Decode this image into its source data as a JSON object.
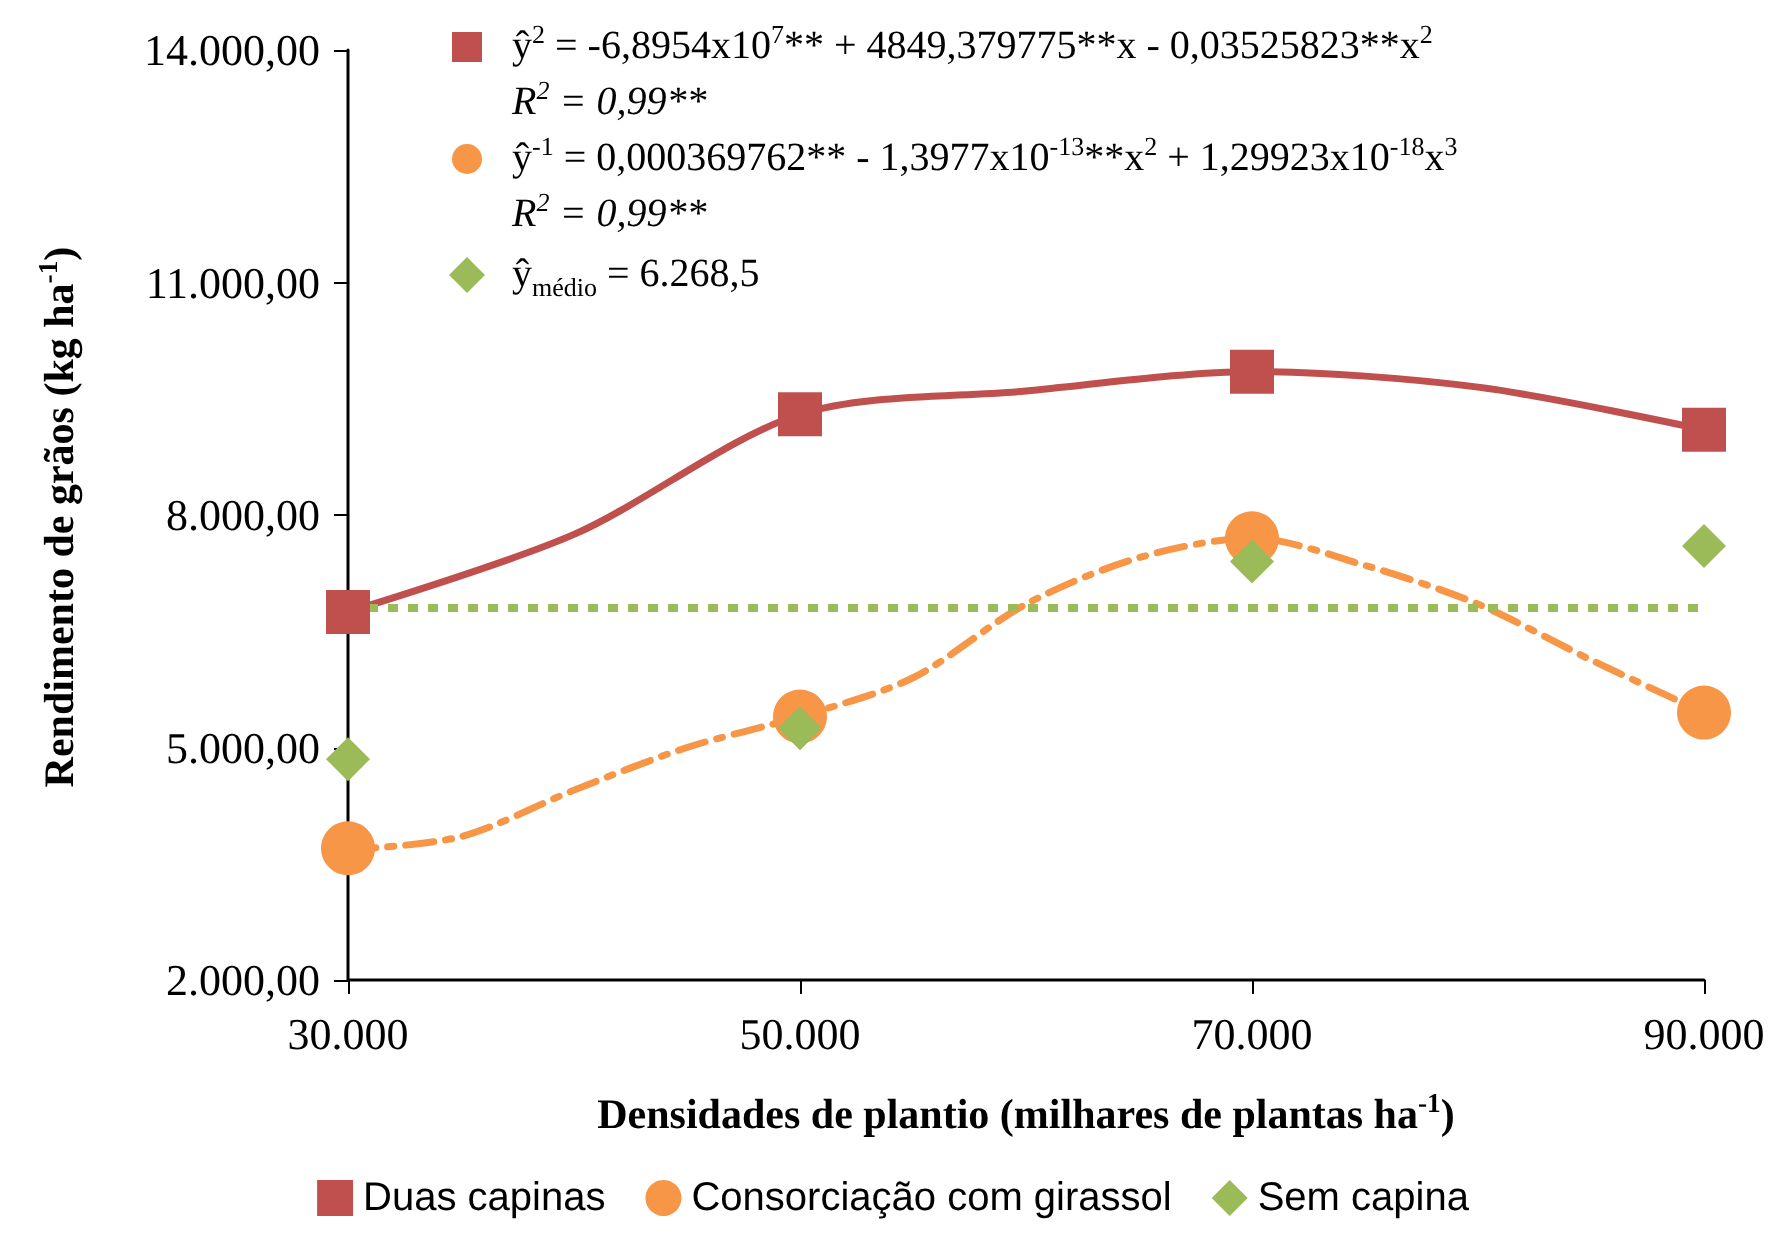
{
  "chart_data": {
    "type": "scatter",
    "xlabel": "Densidades de plantio (milhares de plantas ha$^{-1}$)",
    "ylabel": "Rendimento de grãos (kg ha$^{-1}$)",
    "xlim": [
      30000,
      90000
    ],
    "xticks": [
      {
        "value": 30000,
        "label": "30.000"
      },
      {
        "value": 50000,
        "label": "50.000"
      },
      {
        "value": 70000,
        "label": "70.000"
      },
      {
        "value": 90000,
        "label": "90.000"
      }
    ],
    "ylim": [
      2000,
      14000
    ],
    "yticks": [
      {
        "value": 2000,
        "label": "2.000,00"
      },
      {
        "value": 5000,
        "label": "5.000,00"
      },
      {
        "value": 8000,
        "label": "8.000,00"
      },
      {
        "value": 11000,
        "label": "11.000,00"
      },
      {
        "value": 14000,
        "label": "14.000,00"
      }
    ],
    "grid": false,
    "legend": "bottom",
    "series": [
      {
        "name": "Duas capinas",
        "marker": "square",
        "color": "#c0504d",
        "x": [
          30000,
          50000,
          70000,
          90000
        ],
        "values": [
          6750,
          9300,
          9850,
          9100
        ]
      },
      {
        "name": "Consorciação com girassol",
        "marker": "circle",
        "color": "#f79646",
        "x": [
          30000,
          50000,
          70000,
          90000
        ],
        "values": [
          3700,
          5400,
          7700,
          5450
        ]
      },
      {
        "name": "Sem capina",
        "marker": "diamond",
        "color": "#9bbb59",
        "x": [
          30000,
          50000,
          70000,
          90000
        ],
        "values": [
          4850,
          5250,
          7400,
          7600
        ]
      },
      {
        "type": "line",
        "marker": "none",
        "line_style": "solid",
        "color": "#c0504d",
        "x": [
          30000,
          40000,
          50000,
          60000,
          70000,
          80000,
          90000
        ],
        "values": [
          6750,
          7750,
          9300,
          9600,
          9850,
          9650,
          9100
        ]
      },
      {
        "type": "line",
        "marker": "none",
        "line_style": "dashed",
        "color": "#f79646",
        "x": [
          30000,
          35000,
          40000,
          45000,
          50000,
          55000,
          60000,
          65000,
          70000,
          75000,
          80000,
          85000,
          90000
        ],
        "values": [
          3680,
          3850,
          4450,
          5000,
          5400,
          5900,
          6850,
          7450,
          7700,
          7350,
          6850,
          6130,
          5450
        ]
      }
    ],
    "ref_lines": [
      {
        "axis": "y",
        "value": 6800,
        "color": "#9bbb59",
        "line_style": "dotted"
      }
    ],
    "annotations": [
      "ŷ$^{2}$ = -6,8954x10$^{7}$**",
      "+ 4849,379775**x",
      "- 0,03525823**x$^{2}$",
      "R$^{2}$ = 0,99**",
      "ŷ$^{-1}$ = 0,000369762** - 1,3977x10$^{-13}$**x$^{2}$ + 1,29923x10$^{-18}$x$^{3}$",
      "R$^{2}$ = 0,99**",
      "ŷ$_{médio}$ = 6.268,5"
    ]
  }
}
